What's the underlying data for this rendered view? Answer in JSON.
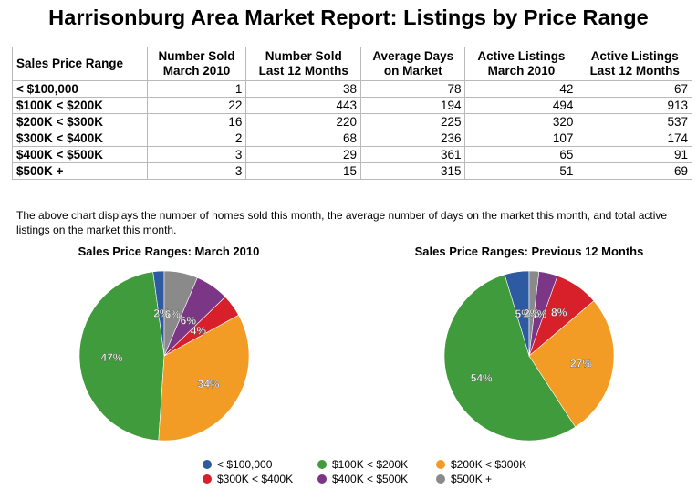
{
  "title": "Harrisonburg Area Market Report: Listings by Price Range",
  "table": {
    "headers": [
      [
        "Sales Price Range",
        ""
      ],
      [
        "Number Sold",
        "March 2010"
      ],
      [
        "Number Sold",
        "Last 12 Months"
      ],
      [
        "Average Days",
        "on Market"
      ],
      [
        "Active Listings",
        "March 2010"
      ],
      [
        "Active Listings",
        "Last 12 Months"
      ]
    ],
    "rows": [
      {
        "range": "< $100,000",
        "values": [
          "1",
          "38",
          "78",
          "42",
          "67"
        ]
      },
      {
        "range": "$100K < $200K",
        "values": [
          "22",
          "443",
          "194",
          "494",
          "913"
        ]
      },
      {
        "range": "$200K < $300K",
        "values": [
          "16",
          "220",
          "225",
          "320",
          "537"
        ]
      },
      {
        "range": "$300K < $400K",
        "values": [
          "2",
          "68",
          "236",
          "107",
          "174"
        ]
      },
      {
        "range": "$400K < $500K",
        "values": [
          "3",
          "29",
          "361",
          "65",
          "91"
        ]
      },
      {
        "range": "$500K +",
        "values": [
          "3",
          "15",
          "315",
          "51",
          "69"
        ]
      }
    ]
  },
  "caption": "The above chart displays the number of homes sold this month, the average number of days on the market this month, and total active listings on the market this month.",
  "colors": {
    "lt100k": "#2d5aa0",
    "100to200k": "#3f9b3b",
    "200to300k": "#f39c25",
    "300to400k": "#d8202b",
    "400to500k": "#7b3685",
    "500kplus": "#8a8a8a"
  },
  "chart_data": [
    {
      "type": "pie",
      "title": "Sales Price Ranges: March 2010",
      "categories": [
        "< $100,000",
        "$100K < $200K",
        "$200K < $300K",
        "$300K < $400K",
        "$400K < $500K",
        "$500K +"
      ],
      "values": [
        1,
        22,
        16,
        2,
        3,
        3
      ],
      "labels": [
        "2%",
        "47%",
        "34%",
        "4%",
        "6%",
        "6%"
      ],
      "legend": "bottom"
    },
    {
      "type": "pie",
      "title": "Sales Price Ranges: Previous 12 Months",
      "categories": [
        "< $100,000",
        "$100K < $200K",
        "$200K < $300K",
        "$300K < $400K",
        "$400K < $500K",
        "$500K +"
      ],
      "values": [
        38,
        443,
        220,
        68,
        29,
        15
      ],
      "labels": [
        "5%",
        "54%",
        "27%",
        "8%",
        "4%",
        "2%"
      ],
      "legend": "bottom"
    }
  ],
  "legend": {
    "items": [
      "< $100,000",
      "$100K < $200K",
      "$200K < $300K",
      "$300K < $400K",
      "$400K < $500K",
      "$500K +"
    ]
  }
}
